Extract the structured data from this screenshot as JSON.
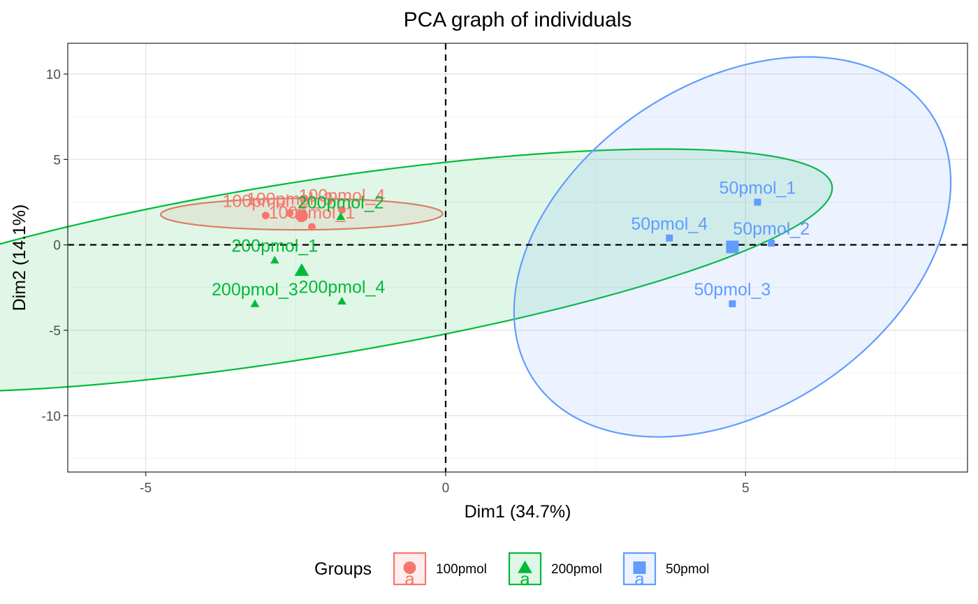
{
  "chart_data": {
    "type": "scatter",
    "title": "PCA graph of individuals",
    "xlabel": "Dim1 (34.7%)",
    "ylabel": "Dim2 (14.1%)",
    "xlim": [
      -6.3,
      8.7
    ],
    "ylim": [
      -13.3,
      11.8
    ],
    "xticks": [
      -5,
      0,
      5
    ],
    "yticks": [
      -10,
      -5,
      0,
      5,
      10
    ],
    "grid": true,
    "reference_lines": [
      {
        "axis": "x",
        "value": 0
      },
      {
        "axis": "y",
        "value": 0
      }
    ],
    "legend": {
      "title": "Groups",
      "placement": "bottom",
      "key_letter": "a"
    },
    "groups": [
      {
        "name": "100pmol",
        "color": "#F8766D",
        "shape": "circle",
        "centroid": [
          -2.4,
          1.7
        ],
        "ellipse": {
          "cx": -2.4,
          "cy": 1.8,
          "rx": 2.35,
          "ry": 0.92,
          "angle_deg": 0.7
        },
        "points": [
          {
            "label": "100pmol_1",
            "x": -2.23,
            "y": 1.05
          },
          {
            "label": "100pmol_2",
            "x": -3.0,
            "y": 1.72
          },
          {
            "label": "100pmol_3",
            "x": -2.6,
            "y": 1.85
          },
          {
            "label": "100pmol_4",
            "x": -1.73,
            "y": 2.05
          }
        ]
      },
      {
        "name": "200pmol",
        "color": "#00BA38",
        "shape": "triangle",
        "centroid": [
          -2.4,
          -1.5
        ],
        "ellipse": {
          "cx": -2.4,
          "cy": -1.5,
          "rx": 10.45,
          "ry": 4.42,
          "angle_deg": 36
        },
        "points": [
          {
            "label": "200pmol_1",
            "x": -2.85,
            "y": -0.9
          },
          {
            "label": "200pmol_2",
            "x": -1.75,
            "y": 1.65
          },
          {
            "label": "200pmol_3",
            "x": -3.18,
            "y": -3.45
          },
          {
            "label": "200pmol_4",
            "x": -1.73,
            "y": -3.3
          }
        ]
      },
      {
        "name": "50pmol",
        "color": "#619CFF",
        "shape": "square",
        "centroid": [
          4.78,
          -0.12
        ],
        "ellipse": {
          "cx": 4.78,
          "cy": -0.12,
          "rx": 11.2,
          "ry": 3.4,
          "angle_deg": 83
        },
        "points": [
          {
            "label": "50pmol_1",
            "x": 5.2,
            "y": 2.5
          },
          {
            "label": "50pmol_2",
            "x": 5.43,
            "y": 0.1
          },
          {
            "label": "50pmol_3",
            "x": 4.78,
            "y": -3.45
          },
          {
            "label": "50pmol_4",
            "x": 3.73,
            "y": 0.4
          }
        ]
      }
    ]
  }
}
